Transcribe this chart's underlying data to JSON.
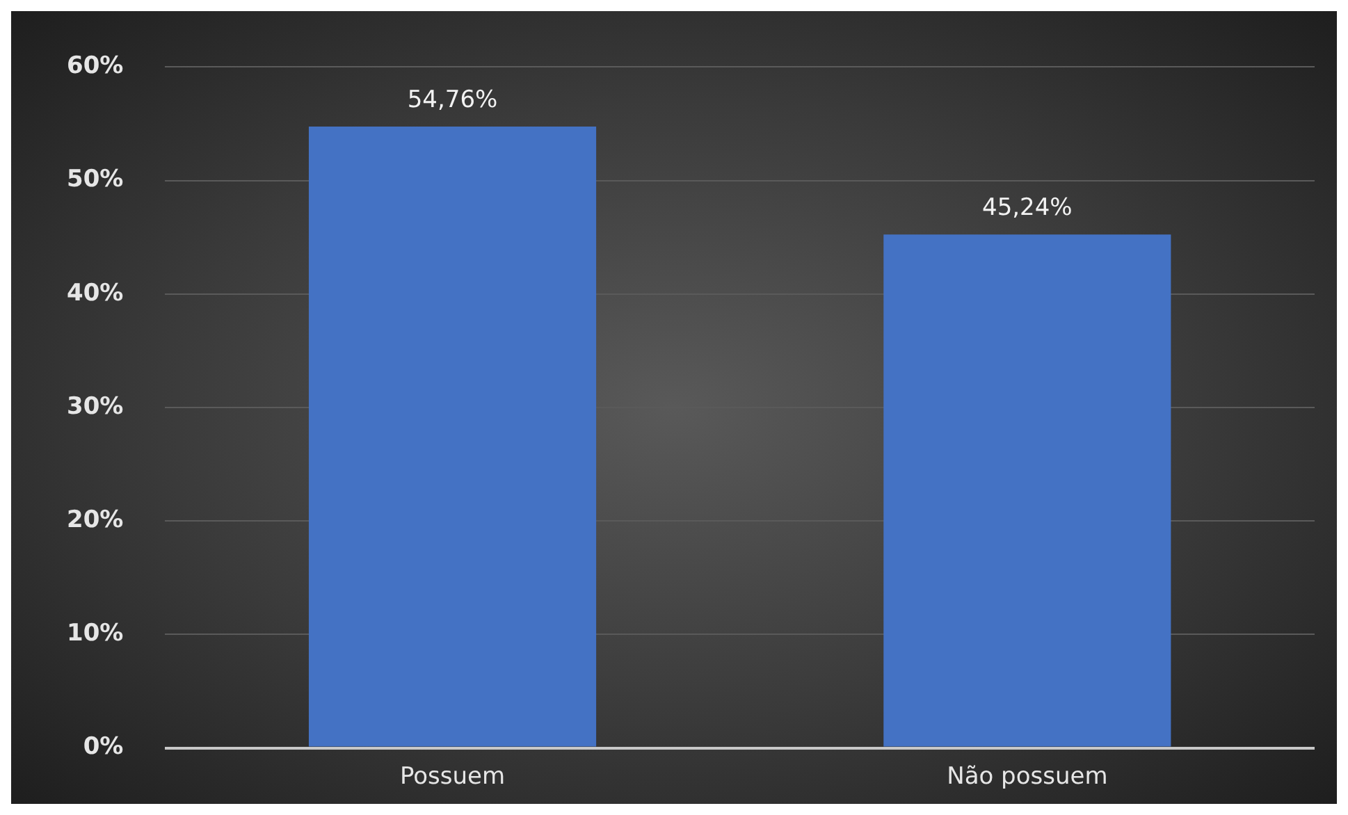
{
  "chart_data": {
    "type": "bar",
    "categories": [
      "Possuem",
      "Não possuem"
    ],
    "values": [
      54.76,
      45.24
    ],
    "value_labels": [
      "54,76%",
      "45,24%"
    ],
    "color": "#4472c4",
    "ylim": [
      0,
      60
    ],
    "yticks": [
      {
        "value": 0,
        "label": "0%"
      },
      {
        "value": 10,
        "label": "10%"
      },
      {
        "value": 20,
        "label": "20%"
      },
      {
        "value": 30,
        "label": "30%"
      },
      {
        "value": 40,
        "label": "40%"
      },
      {
        "value": 50,
        "label": "50%"
      },
      {
        "value": 60,
        "label": "60%"
      }
    ],
    "grid": "y",
    "legend": false
  }
}
